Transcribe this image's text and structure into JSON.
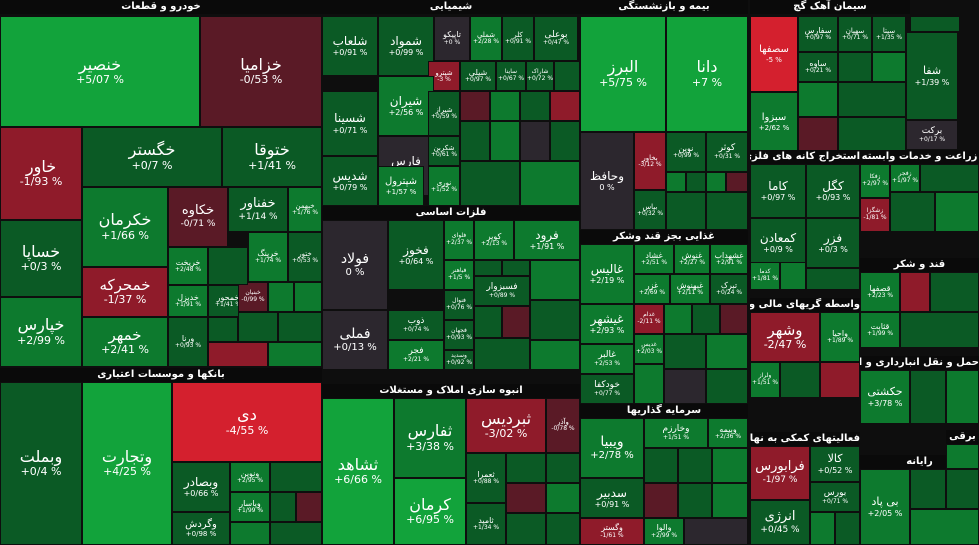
{
  "chart_data": {
    "type": "treemap",
    "colors": {
      "strong_up": "#12a33b",
      "up": "#0d7a2e",
      "mild_up": "#0b5a25",
      "flat": "#2c272e",
      "mild_down": "#5a1a26",
      "down": "#8f1b2a",
      "strong_down": "#d4202e"
    },
    "sectors": [
      {
        "id": "s1",
        "name": "خودرو و قطعات",
        "tiles": [
          {
            "name": "خنصیر",
            "value": "+5/07 %",
            "change": 5.07
          },
          {
            "name": "خزامیا",
            "value": "-0/53 %",
            "change": -0.53
          },
          {
            "name": "خاور",
            "value": "-1/93 %",
            "change": -1.93
          },
          {
            "name": "خگستر",
            "value": "+0/7 %",
            "change": 0.7
          },
          {
            "name": "ختوقا",
            "value": "+1/41 %",
            "change": 1.41
          },
          {
            "name": "خودرو",
            "value": "+0/14 %",
            "change": 0.14
          },
          {
            "name": "خساپا",
            "value": "+0/3 %",
            "change": 0.3
          },
          {
            "name": "خپارس",
            "value": "+2/99 %",
            "change": 2.99
          },
          {
            "name": "خکرمان",
            "value": "+1/66 %",
            "change": 1.66
          },
          {
            "name": "خکاوه",
            "value": "-0/71 %",
            "change": -0.71
          },
          {
            "name": "خفناور",
            "value": "+1/14 %",
            "change": 1.14
          },
          {
            "name": "خبهمن",
            "value": "+1/76 %",
            "change": 1.76
          },
          {
            "name": "خریخت",
            "value": "+2/48 %",
            "change": 2.48
          },
          {
            "name": "خرینگ",
            "value": "+1/74 %",
            "change": 1.74
          },
          {
            "name": "ختور",
            "value": "+0/53 %",
            "change": 0.53
          },
          {
            "name": "خمحرکه",
            "value": "-1/37 %",
            "change": -1.37
          },
          {
            "name": "خدیزل",
            "value": "+1/91 %",
            "change": 1.91
          },
          {
            "name": "خمحور",
            "value": "+1/41 %",
            "change": 1.41
          },
          {
            "name": "خبنیان",
            "value": "-0/99 %",
            "change": -0.99
          },
          {
            "name": "خمهر",
            "value": "+2/41 %",
            "change": 2.41
          },
          {
            "name": "ورنا",
            "value": "+0/93 %",
            "change": 0.93
          }
        ]
      },
      {
        "id": "s2",
        "name": "شیمیایی",
        "tiles": [
          {
            "name": "شلعاب",
            "value": "+0/91 %",
            "change": 0.91
          },
          {
            "name": "شمواد",
            "value": "+0/99 %",
            "change": 0.99
          },
          {
            "name": "تاپیکو",
            "value": "+0 %",
            "change": 0
          },
          {
            "name": "شملی",
            "value": "+2/28 %",
            "change": 2.28
          },
          {
            "name": "کلر",
            "value": "+0/91 %",
            "change": 0.91
          },
          {
            "name": "بوعلی",
            "value": "+0/47 %",
            "change": 0.47
          },
          {
            "name": "شپترو",
            "value": "-3 %",
            "change": -3
          },
          {
            "name": "شیران",
            "value": "+2/56 %",
            "change": 2.56
          },
          {
            "name": "شپلی",
            "value": "+0/97 %",
            "change": 0.97
          },
          {
            "name": "ساینا",
            "value": "+0/67 %",
            "change": 0.67
          },
          {
            "name": "شاراک",
            "value": "+0/72 %",
            "change": 0.72
          },
          {
            "name": "شسینا",
            "value": "+0/71 %",
            "change": 0.71
          },
          {
            "name": "شیراز",
            "value": "+0/59 %",
            "change": 0.59
          },
          {
            "name": "فارس",
            "value": "0 %",
            "change": 0
          },
          {
            "name": "شکربن",
            "value": "+0/61 %",
            "change": 0.61
          },
          {
            "name": "شدیس",
            "value": "+0/79 %",
            "change": 0.79
          },
          {
            "name": "شپترول",
            "value": "+1/57 %",
            "change": 1.57
          },
          {
            "name": "نوری",
            "value": "+1/52 %",
            "change": 1.52
          }
        ]
      },
      {
        "id": "s3",
        "name": "بیمه و بازنشستگی",
        "tiles": [
          {
            "name": "البرز",
            "value": "+5/75 %",
            "change": 5.75
          },
          {
            "name": "دانا",
            "value": "+7 %",
            "change": 7
          },
          {
            "name": "بخاور",
            "value": "-3/12 %",
            "change": -3.12
          },
          {
            "name": "نوین",
            "value": "+0/99 %",
            "change": 0.99
          },
          {
            "name": "کوثر",
            "value": "+0/31 %",
            "change": 0.31
          },
          {
            "name": "وحافظ",
            "value": "0 %",
            "change": 0
          },
          {
            "name": "بپاس",
            "value": "+0/32 %",
            "change": 0.32
          }
        ]
      },
      {
        "id": "s4",
        "name": "سیمان آهک گچ",
        "tiles": [
          {
            "name": "سصفها",
            "value": "-5 %",
            "change": -5
          },
          {
            "name": "سفارس",
            "value": "+0/97 %",
            "change": 0.97
          },
          {
            "name": "سهیان",
            "value": "+0/71 %",
            "change": 0.71
          },
          {
            "name": "سیتا",
            "value": "+1/35 %",
            "change": 1.35
          },
          {
            "name": "ساوه",
            "value": "+0/21 %",
            "change": 0.21
          },
          {
            "name": "شفا",
            "value": "+1/39 %",
            "change": 1.39
          },
          {
            "name": "سبزوا",
            "value": "+2/62 %",
            "change": 2.62
          },
          {
            "name": "برکت",
            "value": "+0/17 %",
            "change": 0.17
          }
        ]
      },
      {
        "id": "s5",
        "name": "فلزات اساسی",
        "tiles": [
          {
            "name": "فولاد",
            "value": "0 %",
            "change": 0
          },
          {
            "name": "فخوز",
            "value": "+0/64 %",
            "change": 0.64
          },
          {
            "name": "فلوای",
            "value": "+2/37 %",
            "change": 2.37
          },
          {
            "name": "کویر",
            "value": "+2/13 %",
            "change": 2.13
          },
          {
            "name": "فرود",
            "value": "+1/91 %",
            "change": 1.91
          },
          {
            "name": "فملی",
            "value": "+0/13 %",
            "change": 0.13
          },
          {
            "name": "فباهنر",
            "value": "+1/5 %",
            "change": 1.5
          },
          {
            "name": "فسبزوار",
            "value": "+0/89 %",
            "change": 0.89
          },
          {
            "name": "فنوال",
            "value": "+0/76 %",
            "change": 0.76
          },
          {
            "name": "ذوب",
            "value": "+0/74 %",
            "change": 0.74
          },
          {
            "name": "فجهان",
            "value": "+0/93 %",
            "change": 0.93
          },
          {
            "name": "فجر",
            "value": "+2/21 %",
            "change": 2.21
          },
          {
            "name": "وسدید",
            "value": "+0/92 %",
            "change": 0.92
          }
        ]
      },
      {
        "id": "s6",
        "name": "استخراج کانه های فلزی",
        "tiles": [
          {
            "name": "کاما",
            "value": "+0/97 %",
            "change": 0.97
          },
          {
            "name": "کگل",
            "value": "+0/93 %",
            "change": 0.93
          },
          {
            "name": "کمعادن",
            "value": "+0/9 %",
            "change": 0.9
          },
          {
            "name": "فزر",
            "value": "+0/3 %",
            "change": 0.3
          },
          {
            "name": "کدما",
            "value": "+1/81 %",
            "change": 1.81
          }
        ]
      },
      {
        "id": "s7",
        "name": "زراعت و خدمات وابسته",
        "tiles": [
          {
            "name": "زفکا",
            "value": "+2/97 %",
            "change": 2.97
          },
          {
            "name": "زفجر",
            "value": "+1/97 %",
            "change": 1.97
          },
          {
            "name": "زشگزا",
            "value": "-1/81 %",
            "change": -1.81
          }
        ]
      },
      {
        "id": "s8",
        "name": "غذایی بجز قند وشکر",
        "tiles": [
          {
            "name": "غشهداب",
            "value": "+2/91 %",
            "change": 2.91
          },
          {
            "name": "غنوش",
            "value": "+2/27 %",
            "change": 2.27
          },
          {
            "name": "غشاد",
            "value": "+2/51 %",
            "change": 2.51
          },
          {
            "name": "غالیس",
            "value": "+2/19 %",
            "change": 2.19
          },
          {
            "name": "غزر",
            "value": "+2/69 %",
            "change": 2.69
          },
          {
            "name": "غبهنوش",
            "value": "+2/11 %",
            "change": 2.11
          },
          {
            "name": "تبرک",
            "value": "+0/24 %",
            "change": 0.24
          },
          {
            "name": "غیشهر",
            "value": "+2/93 %",
            "change": 2.93
          },
          {
            "name": "غدام",
            "value": "-2/11 %",
            "change": -2.11
          },
          {
            "name": "غالبر",
            "value": "+2/53 %",
            "change": 2.53
          },
          {
            "name": "غدیس",
            "value": "+2/03 %",
            "change": 2.03
          },
          {
            "name": "خودکفا",
            "value": "+0/77 %",
            "change": 0.77
          }
        ]
      },
      {
        "id": "s9",
        "name": "قند و شکر",
        "tiles": [
          {
            "name": "قصفها",
            "value": "+2/23 %",
            "change": 2.23
          },
          {
            "name": "قثابت",
            "value": "+1/99 %",
            "change": 1.99
          }
        ]
      },
      {
        "id": "s10",
        "name": "واسطه گریهای مالی و پولی",
        "tiles": [
          {
            "name": "وشهر",
            "value": "-2/47 %",
            "change": -2.47
          },
          {
            "name": "واحیا",
            "value": "+1/89 %",
            "change": 1.89
          },
          {
            "name": "ولراز",
            "value": "+1/51 %",
            "change": 1.51
          }
        ]
      },
      {
        "id": "s11",
        "name": "حمل و نقل انبارداری و ارتباطات",
        "tiles": [
          {
            "name": "حکشتی",
            "value": "+3/78 %",
            "change": 3.78
          }
        ]
      },
      {
        "id": "s12",
        "name": "بانکها و موسسات اعتباری",
        "tiles": [
          {
            "name": "وبملت",
            "value": "+0/4 %",
            "change": 0.4
          },
          {
            "name": "وتجارت",
            "value": "+4/25 %",
            "change": 4.25
          },
          {
            "name": "دی",
            "value": "-4/55 %",
            "change": -4.55
          },
          {
            "name": "ونوین",
            "value": "+2/95 %",
            "change": 2.95
          },
          {
            "name": "وبصادر",
            "value": "+0/66 %",
            "change": 0.66
          },
          {
            "name": "وپاسار",
            "value": "+1/99 %",
            "change": 1.99
          },
          {
            "name": "وگردش",
            "value": "+0/98 %",
            "change": 0.98
          }
        ]
      },
      {
        "id": "s13",
        "name": "انبوه سازی املاک و مستغلات",
        "tiles": [
          {
            "name": "ثشاهد",
            "value": "+6/66 %",
            "change": 6.66
          },
          {
            "name": "ثفارس",
            "value": "+3/38 %",
            "change": 3.38
          },
          {
            "name": "ثبردیس",
            "value": "-3/02 %",
            "change": -3.02
          },
          {
            "name": "وآذر",
            "value": "-0/78 %",
            "change": -0.78
          },
          {
            "name": "کرمان",
            "value": "+6/95 %",
            "change": 6.95
          },
          {
            "name": "ثعمرا",
            "value": "+0/88 %",
            "change": 0.88
          },
          {
            "name": "ثاميد",
            "value": "+1/34 %",
            "change": 1.34
          }
        ]
      },
      {
        "id": "s14",
        "name": "سرمایه گذاریها",
        "tiles": [
          {
            "name": "ویبیا",
            "value": "+2/78 %",
            "change": 2.78
          },
          {
            "name": "وخارزم",
            "value": "+1/51 %",
            "change": 1.51
          },
          {
            "name": "وبیمه",
            "value": "+2/36 %",
            "change": 2.36
          },
          {
            "name": "سدبیر",
            "value": "+0/91 %",
            "change": 0.91
          },
          {
            "name": "وگستر",
            "value": "-1/61 %",
            "change": -1.61
          },
          {
            "name": "والوا",
            "value": "+2/99 %",
            "change": 2.99
          }
        ]
      },
      {
        "id": "s15",
        "name": "فعالیتهای کمکی به نهاد های مالی",
        "tiles": [
          {
            "name": "فرابورس",
            "value": "-1/97 %",
            "change": -1.97
          },
          {
            "name": "کالا",
            "value": "+0/52 %",
            "change": 0.52
          },
          {
            "name": "بورس",
            "value": "+0/71 %",
            "change": 0.71
          },
          {
            "name": "انرژی",
            "value": "+0/45 %",
            "change": 0.45
          }
        ]
      },
      {
        "id": "s16",
        "name": "رایانه",
        "tiles": [
          {
            "name": "بی پاد",
            "value": "+2/05 %",
            "change": 2.05
          }
        ]
      },
      {
        "id": "s17",
        "name": "برقی",
        "tiles": [
          {
            "name": "",
            "value": "",
            "change": 1.5
          }
        ]
      }
    ]
  }
}
